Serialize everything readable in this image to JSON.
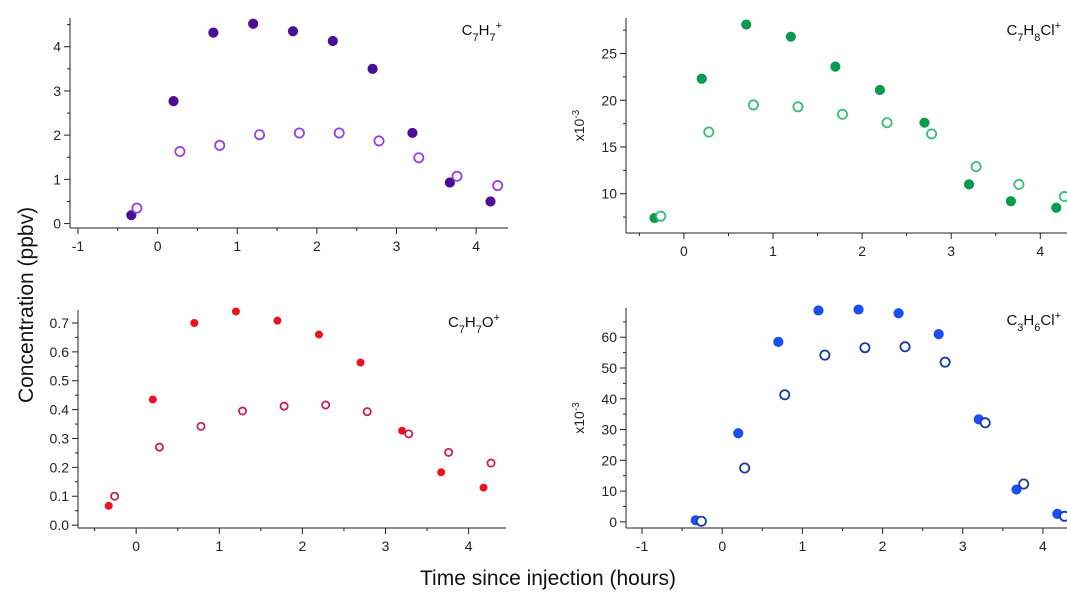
{
  "figure": {
    "ylabel": "Concentration (ppbv)",
    "xlabel": "Time since injection (hours)"
  },
  "chart_data": [
    {
      "type": "scatter",
      "label_html": "C<tspan baseline-shift='sub' font-size='11'>7</tspan>H<tspan baseline-shift='sub' font-size='11'>7</tspan><tspan baseline-shift='super' font-size='11'>+</tspan>",
      "label_text": "C7H7+",
      "xlim": [
        -1.1,
        4.4
      ],
      "ylim": [
        -0.1,
        4.65
      ],
      "xticks": [
        -1,
        0,
        1,
        2,
        3,
        4
      ],
      "yticks": [
        0,
        1,
        2,
        3,
        4
      ],
      "multiplier": "",
      "color": "#4b0f96",
      "series": [
        {
          "marker": "filled",
          "x": [
            -0.33,
            0.2,
            0.7,
            1.2,
            1.7,
            2.2,
            2.7,
            3.2,
            3.67,
            4.18
          ],
          "y": [
            0.19,
            2.77,
            4.32,
            4.52,
            4.35,
            4.13,
            3.5,
            2.05,
            0.93,
            0.5
          ]
        },
        {
          "marker": "open",
          "color": "#9a3ee8",
          "x": [
            -0.26,
            0.28,
            0.78,
            1.28,
            1.78,
            2.28,
            2.78,
            3.28,
            3.76,
            4.27
          ],
          "y": [
            0.35,
            1.63,
            1.77,
            2.01,
            2.05,
            2.05,
            1.87,
            1.49,
            1.07,
            0.86
          ]
        }
      ]
    },
    {
      "type": "scatter",
      "label_html": "C<tspan baseline-shift='sub' font-size='11'>7</tspan>H<tspan baseline-shift='sub' font-size='11'>8</tspan>Cl<tspan baseline-shift='super' font-size='11'>+</tspan>",
      "label_text": "C7H8Cl+",
      "xlim": [
        -0.65,
        4.3
      ],
      "ylim": [
        5.8,
        28.8
      ],
      "xticks": [
        0,
        1,
        2,
        3,
        4
      ],
      "yticks": [
        10,
        15,
        20,
        25
      ],
      "multiplier": "x10-3",
      "color": "#0a9a50",
      "series": [
        {
          "marker": "filled",
          "x": [
            -0.33,
            0.2,
            0.7,
            1.2,
            1.7,
            2.2,
            2.7,
            3.2,
            3.67,
            4.18
          ],
          "y": [
            7.4,
            22.3,
            28.1,
            26.8,
            23.6,
            21.1,
            17.6,
            11.0,
            9.2,
            8.5
          ]
        },
        {
          "marker": "open",
          "color": "#3dbb78",
          "x": [
            -0.26,
            0.28,
            0.78,
            1.28,
            1.78,
            2.28,
            2.78,
            3.28,
            3.76,
            4.27
          ],
          "y": [
            7.6,
            16.6,
            19.5,
            19.3,
            18.5,
            17.6,
            16.4,
            12.9,
            11.0,
            9.7
          ]
        }
      ]
    },
    {
      "type": "scatter",
      "label_html": "C<tspan baseline-shift='sub' font-size='11'>7</tspan>H<tspan baseline-shift='sub' font-size='11'>7</tspan>O<tspan baseline-shift='super' font-size='11'>+</tspan>",
      "label_text": "C7H7O+",
      "xlim": [
        -0.7,
        4.45
      ],
      "ylim": [
        -0.01,
        0.745
      ],
      "xticks": [
        0,
        1,
        2,
        3,
        4
      ],
      "yticks": [
        0.0,
        0.1,
        0.2,
        0.3,
        0.4,
        0.5,
        0.6,
        0.7
      ],
      "ytickfmt": 1,
      "multiplier": "",
      "color": "#e8141e",
      "series": [
        {
          "marker": "filled",
          "r": 3.5,
          "x": [
            -0.33,
            0.2,
            0.7,
            1.2,
            1.7,
            2.2,
            2.7,
            3.2,
            3.67,
            4.18
          ],
          "y": [
            0.067,
            0.435,
            0.7,
            0.74,
            0.708,
            0.66,
            0.563,
            0.327,
            0.183,
            0.13
          ]
        },
        {
          "marker": "open",
          "r": 3.6,
          "color": "#c8205a",
          "x": [
            -0.26,
            0.28,
            0.78,
            1.28,
            1.78,
            2.28,
            2.78,
            3.28,
            3.76,
            4.27
          ],
          "y": [
            0.1,
            0.27,
            0.342,
            0.395,
            0.412,
            0.416,
            0.393,
            0.316,
            0.252,
            0.215
          ]
        }
      ]
    },
    {
      "type": "scatter",
      "label_html": "C<tspan baseline-shift='sub' font-size='11'>3</tspan>H<tspan baseline-shift='sub' font-size='11'>6</tspan>Cl<tspan baseline-shift='super' font-size='11'>+</tspan>",
      "label_text": "C3H6Cl+",
      "xlim": [
        -1.2,
        4.3
      ],
      "ylim": [
        -2,
        69.5
      ],
      "xticks": [
        -1,
        0,
        1,
        2,
        3,
        4
      ],
      "yticks": [
        0,
        10,
        20,
        30,
        40,
        50,
        60
      ],
      "multiplier": "x10-3",
      "color": "#1a4ff0",
      "series": [
        {
          "marker": "filled",
          "x": [
            -0.33,
            0.2,
            0.7,
            1.2,
            1.7,
            2.2,
            2.7,
            3.2,
            3.67,
            4.18
          ],
          "y": [
            0.5,
            28.8,
            58.5,
            68.7,
            69.0,
            67.8,
            61.0,
            33.3,
            10.5,
            2.6
          ]
        },
        {
          "marker": "open",
          "color": "#173c9e",
          "x": [
            -0.26,
            0.28,
            0.78,
            1.28,
            1.78,
            2.28,
            2.78,
            3.28,
            3.76,
            4.27
          ],
          "y": [
            0.2,
            17.5,
            41.3,
            54.2,
            56.6,
            56.9,
            51.9,
            32.2,
            12.3,
            1.8
          ]
        }
      ]
    }
  ]
}
